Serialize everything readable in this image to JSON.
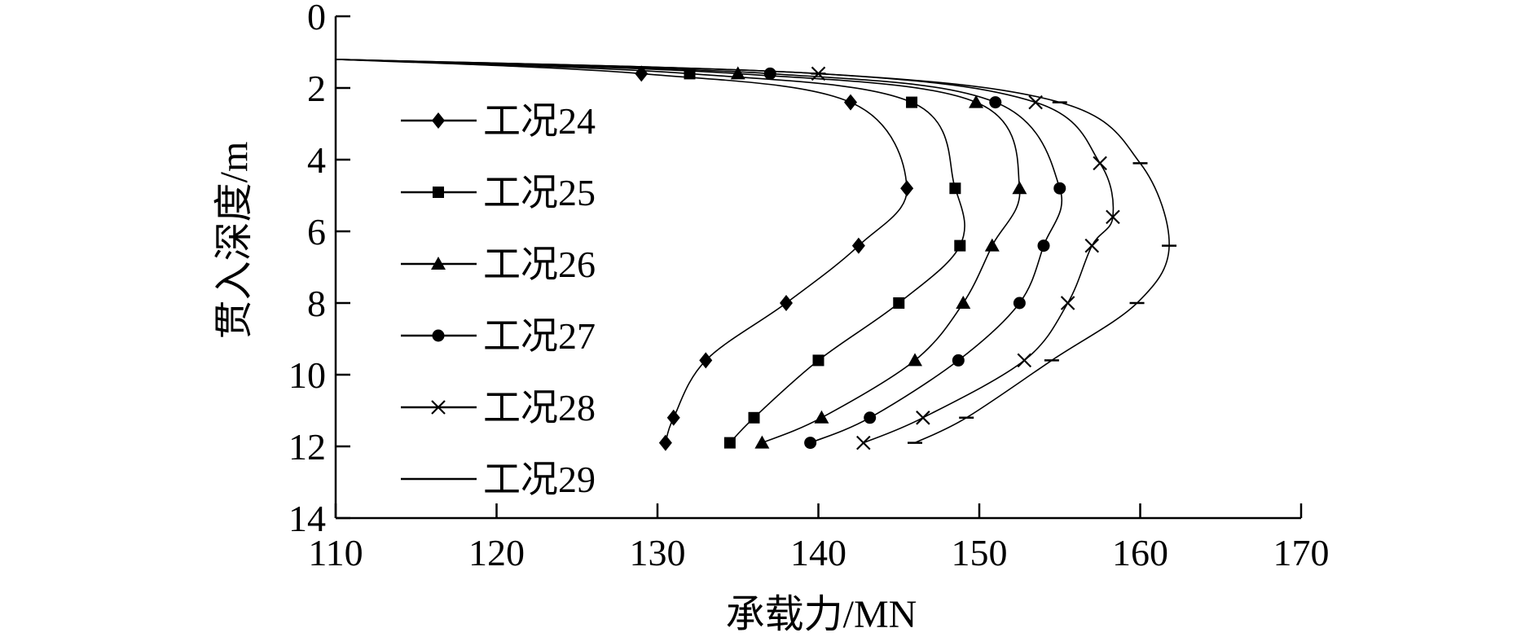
{
  "chart_data": {
    "type": "line",
    "title": "",
    "xlabel": "承载力/MN",
    "ylabel": "贯入深度/m",
    "xlim": [
      110,
      170
    ],
    "ylim": [
      0,
      14
    ],
    "y_inverted": true,
    "x_ticks": [
      110,
      120,
      130,
      140,
      150,
      160,
      170
    ],
    "y_ticks": [
      0,
      2,
      4,
      6,
      8,
      10,
      12,
      14
    ],
    "x_axis_position": "bottom",
    "grid": false,
    "legend_position": "top-left",
    "colors": {
      "line": "#000000",
      "background": "#ffffff"
    },
    "series": [
      {
        "name": "工况24",
        "marker": "diamond",
        "points": [
          [
            110,
            1.2
          ],
          [
            129,
            1.6
          ],
          [
            142,
            2.4
          ],
          [
            145.5,
            4.8
          ],
          [
            142.5,
            6.4
          ],
          [
            138,
            8.0
          ],
          [
            133,
            9.6
          ],
          [
            131,
            11.2
          ],
          [
            130.5,
            11.9
          ]
        ]
      },
      {
        "name": "工况25",
        "marker": "square",
        "points": [
          [
            110,
            1.2
          ],
          [
            132,
            1.6
          ],
          [
            145.8,
            2.4
          ],
          [
            148.5,
            4.8
          ],
          [
            148.8,
            6.4
          ],
          [
            145,
            8.0
          ],
          [
            140,
            9.6
          ],
          [
            136,
            11.2
          ],
          [
            134.5,
            11.9
          ]
        ]
      },
      {
        "name": "工况26",
        "marker": "triangle",
        "points": [
          [
            110,
            1.2
          ],
          [
            135,
            1.6
          ],
          [
            149.8,
            2.4
          ],
          [
            152.5,
            4.8
          ],
          [
            150.8,
            6.4
          ],
          [
            149,
            8.0
          ],
          [
            146,
            9.6
          ],
          [
            140.2,
            11.2
          ],
          [
            136.5,
            11.9
          ]
        ]
      },
      {
        "name": "工况27",
        "marker": "circle",
        "points": [
          [
            110,
            1.2
          ],
          [
            137,
            1.6
          ],
          [
            151,
            2.4
          ],
          [
            155,
            4.8
          ],
          [
            154,
            6.4
          ],
          [
            152.5,
            8.0
          ],
          [
            148.7,
            9.6
          ],
          [
            143.2,
            11.2
          ],
          [
            139.5,
            11.9
          ]
        ]
      },
      {
        "name": "工况28",
        "marker": "x",
        "points": [
          [
            110,
            1.2
          ],
          [
            140,
            1.6
          ],
          [
            153.5,
            2.4
          ],
          [
            157.5,
            4.1
          ],
          [
            158.3,
            5.6
          ],
          [
            157,
            6.4
          ],
          [
            155.5,
            8.0
          ],
          [
            152.8,
            9.6
          ],
          [
            146.5,
            11.2
          ],
          [
            142.8,
            11.9
          ]
        ]
      },
      {
        "name": "工况29",
        "marker": "dash",
        "points": [
          [
            110,
            1.2
          ],
          [
            140,
            1.6
          ],
          [
            155,
            2.4
          ],
          [
            160,
            4.1
          ],
          [
            161.8,
            6.4
          ],
          [
            159.8,
            8.0
          ],
          [
            154.5,
            9.6
          ],
          [
            149.2,
            11.2
          ],
          [
            146,
            11.9
          ]
        ]
      }
    ]
  }
}
